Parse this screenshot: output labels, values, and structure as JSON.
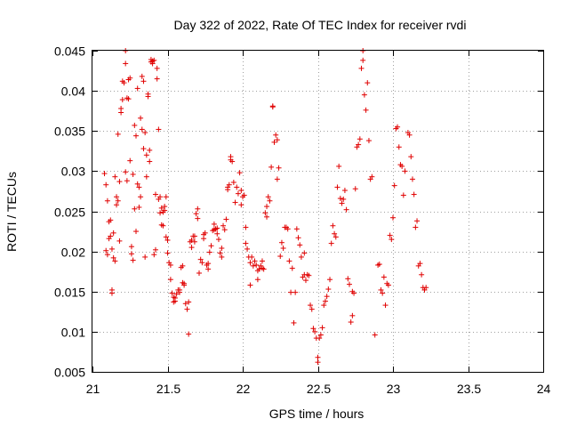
{
  "chart_data": {
    "type": "scatter",
    "title": "Day 322 of 2022, Rate Of TEC Index for receiver rvdi",
    "xlabel": "GPS time / hours",
    "ylabel": "ROTI / TECUs",
    "xlim": [
      21,
      24
    ],
    "ylim": [
      0.005,
      0.045
    ],
    "xticks": [
      21,
      21.5,
      22,
      22.5,
      23,
      23.5,
      24
    ],
    "xtick_labels": [
      "21",
      "21.5",
      "22",
      "22.5",
      "23",
      "23.5",
      "24"
    ],
    "yticks": [
      0.005,
      0.01,
      0.015,
      0.02,
      0.025,
      0.03,
      0.035,
      0.04,
      0.045
    ],
    "ytick_labels": [
      "0.005",
      "0.01",
      "0.015",
      "0.02",
      "0.025",
      "0.03",
      "0.035",
      "0.04",
      "0.045"
    ],
    "grid": true,
    "marker": "+",
    "color": "#e00000",
    "series": [
      {
        "name": "ROTI",
        "points": [
          [
            21.08,
            0.0297
          ],
          [
            21.09,
            0.0283
          ],
          [
            21.09,
            0.0201
          ],
          [
            21.1,
            0.0263
          ],
          [
            21.1,
            0.0196
          ],
          [
            21.11,
            0.0237
          ],
          [
            21.11,
            0.0216
          ],
          [
            21.12,
            0.0219
          ],
          [
            21.12,
            0.0239
          ],
          [
            21.13,
            0.0152
          ],
          [
            21.13,
            0.0148
          ],
          [
            21.13,
            0.0203
          ],
          [
            21.14,
            0.0192
          ],
          [
            21.14,
            0.0223
          ],
          [
            21.15,
            0.0293
          ],
          [
            21.15,
            0.0188
          ],
          [
            21.16,
            0.0268
          ],
          [
            21.16,
            0.0258
          ],
          [
            21.17,
            0.0263
          ],
          [
            21.17,
            0.0346
          ],
          [
            21.18,
            0.0287
          ],
          [
            21.18,
            0.0213
          ],
          [
            21.19,
            0.0373
          ],
          [
            21.19,
            0.0378
          ],
          [
            21.2,
            0.0389
          ],
          [
            21.2,
            0.0412
          ],
          [
            21.21,
            0.041
          ],
          [
            21.22,
            0.045
          ],
          [
            21.22,
            0.0434
          ],
          [
            21.22,
            0.0299
          ],
          [
            21.23,
            0.0391
          ],
          [
            21.23,
            0.0288
          ],
          [
            21.24,
            0.0414
          ],
          [
            21.24,
            0.039
          ],
          [
            21.25,
            0.0416
          ],
          [
            21.25,
            0.0313
          ],
          [
            21.26,
            0.0197
          ],
          [
            21.26,
            0.0206
          ],
          [
            21.27,
            0.0189
          ],
          [
            21.27,
            0.0296
          ],
          [
            21.28,
            0.0357
          ],
          [
            21.28,
            0.0253
          ],
          [
            21.29,
            0.0225
          ],
          [
            21.29,
            0.0344
          ],
          [
            21.3,
            0.0403
          ],
          [
            21.3,
            0.0284
          ],
          [
            21.31,
            0.0255
          ],
          [
            21.31,
            0.028
          ],
          [
            21.32,
            0.0366
          ],
          [
            21.32,
            0.0268
          ],
          [
            21.33,
            0.0418
          ],
          [
            21.33,
            0.0352
          ],
          [
            21.34,
            0.0412
          ],
          [
            21.34,
            0.0328
          ],
          [
            21.35,
            0.0193
          ],
          [
            21.35,
            0.0348
          ],
          [
            21.36,
            0.0293
          ],
          [
            21.36,
            0.032
          ],
          [
            21.37,
            0.0393
          ],
          [
            21.37,
            0.0396
          ],
          [
            21.38,
            0.0326
          ],
          [
            21.38,
            0.0312
          ],
          [
            21.39,
            0.0439
          ],
          [
            21.39,
            0.0436
          ],
          [
            21.4,
            0.0437
          ],
          [
            21.4,
            0.0434
          ],
          [
            21.41,
            0.0438
          ],
          [
            21.41,
            0.0196
          ],
          [
            21.42,
            0.0271
          ],
          [
            21.42,
            0.0202
          ],
          [
            21.43,
            0.0415
          ],
          [
            21.43,
            0.0428
          ],
          [
            21.44,
            0.0352
          ],
          [
            21.44,
            0.0265
          ],
          [
            21.45,
            0.0248
          ],
          [
            21.45,
            0.0268
          ],
          [
            21.46,
            0.0233
          ],
          [
            21.46,
            0.0254
          ],
          [
            21.47,
            0.0249
          ],
          [
            21.47,
            0.0232
          ],
          [
            21.48,
            0.0251
          ],
          [
            21.48,
            0.0256
          ],
          [
            21.49,
            0.0268
          ],
          [
            21.49,
            0.0218
          ],
          [
            21.5,
            0.0214
          ],
          [
            21.5,
            0.0198
          ],
          [
            21.51,
            0.0186
          ],
          [
            21.52,
            0.0183
          ],
          [
            21.52,
            0.0165
          ],
          [
            21.53,
            0.0148
          ],
          [
            21.54,
            0.0143
          ],
          [
            21.54,
            0.0137
          ],
          [
            21.55,
            0.0138
          ],
          [
            21.55,
            0.0142
          ],
          [
            21.56,
            0.0147
          ],
          [
            21.57,
            0.0152
          ],
          [
            21.58,
            0.0149
          ],
          [
            21.58,
            0.0152
          ],
          [
            21.59,
            0.018
          ],
          [
            21.6,
            0.0182
          ],
          [
            21.6,
            0.0161
          ],
          [
            21.61,
            0.016
          ],
          [
            21.61,
            0.0158
          ],
          [
            21.62,
            0.0135
          ],
          [
            21.63,
            0.0128
          ],
          [
            21.64,
            0.0097
          ],
          [
            21.64,
            0.0137
          ],
          [
            21.65,
            0.0212
          ],
          [
            21.66,
            0.0214
          ],
          [
            21.66,
            0.0205
          ],
          [
            21.67,
            0.0219
          ],
          [
            21.68,
            0.0212
          ],
          [
            21.68,
            0.0219
          ],
          [
            21.69,
            0.0247
          ],
          [
            21.7,
            0.0253
          ],
          [
            21.7,
            0.0241
          ],
          [
            21.71,
            0.0173
          ],
          [
            21.72,
            0.019
          ],
          [
            21.73,
            0.0186
          ],
          [
            21.74,
            0.0221
          ],
          [
            21.74,
            0.0216
          ],
          [
            21.75,
            0.0223
          ],
          [
            21.76,
            0.0183
          ],
          [
            21.77,
            0.0178
          ],
          [
            21.77,
            0.0185
          ],
          [
            21.78,
            0.0199
          ],
          [
            21.79,
            0.0207
          ],
          [
            21.8,
            0.0226
          ],
          [
            21.81,
            0.0234
          ],
          [
            21.81,
            0.0227
          ],
          [
            21.82,
            0.0228
          ],
          [
            21.83,
            0.0229
          ],
          [
            21.83,
            0.0222
          ],
          [
            21.84,
            0.0215
          ],
          [
            21.85,
            0.0198
          ],
          [
            21.86,
            0.0204
          ],
          [
            21.86,
            0.0193
          ],
          [
            21.87,
            0.0232
          ],
          [
            21.88,
            0.0227
          ],
          [
            21.89,
            0.024
          ],
          [
            21.9,
            0.028
          ],
          [
            21.9,
            0.0277
          ],
          [
            21.91,
            0.0283
          ],
          [
            21.92,
            0.0314
          ],
          [
            21.92,
            0.0318
          ],
          [
            21.93,
            0.0312
          ],
          [
            21.94,
            0.0286
          ],
          [
            21.95,
            0.0261
          ],
          [
            21.96,
            0.028
          ],
          [
            21.97,
            0.0272
          ],
          [
            21.98,
            0.0298
          ],
          [
            21.99,
            0.0276
          ],
          [
            21.99,
            0.0258
          ],
          [
            22.0,
            0.0268
          ],
          [
            22.01,
            0.027
          ],
          [
            22.02,
            0.023
          ],
          [
            22.02,
            0.021
          ],
          [
            22.03,
            0.0203
          ],
          [
            22.04,
            0.0193
          ],
          [
            22.05,
            0.0186
          ],
          [
            22.05,
            0.0158
          ],
          [
            22.06,
            0.0193
          ],
          [
            22.07,
            0.0182
          ],
          [
            22.08,
            0.0188
          ],
          [
            22.09,
            0.0183
          ],
          [
            22.1,
            0.0165
          ],
          [
            22.1,
            0.0176
          ],
          [
            22.11,
            0.0178
          ],
          [
            22.12,
            0.0182
          ],
          [
            22.13,
            0.0188
          ],
          [
            22.13,
            0.0179
          ],
          [
            22.14,
            0.0178
          ],
          [
            22.15,
            0.0248
          ],
          [
            22.16,
            0.0243
          ],
          [
            22.16,
            0.0256
          ],
          [
            22.17,
            0.0268
          ],
          [
            22.18,
            0.0263
          ],
          [
            22.19,
            0.0305
          ],
          [
            22.2,
            0.0381
          ],
          [
            22.2,
            0.038
          ],
          [
            22.21,
            0.0336
          ],
          [
            22.22,
            0.0345
          ],
          [
            22.23,
            0.0339
          ],
          [
            22.23,
            0.029
          ],
          [
            22.24,
            0.0304
          ],
          [
            22.25,
            0.0194
          ],
          [
            22.26,
            0.0211
          ],
          [
            22.27,
            0.0204
          ],
          [
            22.28,
            0.023
          ],
          [
            22.29,
            0.023
          ],
          [
            22.3,
            0.0228
          ],
          [
            22.31,
            0.0188
          ],
          [
            22.32,
            0.0149
          ],
          [
            22.33,
            0.0179
          ],
          [
            22.34,
            0.0111
          ],
          [
            22.35,
            0.0149
          ],
          [
            22.36,
            0.0228
          ],
          [
            22.37,
            0.0217
          ],
          [
            22.38,
            0.0208
          ],
          [
            22.39,
            0.0193
          ],
          [
            22.4,
            0.0168
          ],
          [
            22.41,
            0.0198
          ],
          [
            22.41,
            0.0171
          ],
          [
            22.42,
            0.0164
          ],
          [
            22.43,
            0.0171
          ],
          [
            22.44,
            0.017
          ],
          [
            22.45,
            0.0133
          ],
          [
            22.46,
            0.0128
          ],
          [
            22.47,
            0.0104
          ],
          [
            22.48,
            0.01
          ],
          [
            22.49,
            0.0092
          ],
          [
            22.5,
            0.0068
          ],
          [
            22.5,
            0.0062
          ],
          [
            22.51,
            0.0092
          ],
          [
            22.52,
            0.0096
          ],
          [
            22.53,
            0.0105
          ],
          [
            22.54,
            0.0133
          ],
          [
            22.55,
            0.0138
          ],
          [
            22.56,
            0.0144
          ],
          [
            22.57,
            0.0153
          ],
          [
            22.58,
            0.0165
          ],
          [
            22.59,
            0.021
          ],
          [
            22.6,
            0.0232
          ],
          [
            22.61,
            0.0222
          ],
          [
            22.62,
            0.0218
          ],
          [
            22.63,
            0.028
          ],
          [
            22.64,
            0.0306
          ],
          [
            22.65,
            0.0266
          ],
          [
            22.66,
            0.026
          ],
          [
            22.67,
            0.0265
          ],
          [
            22.68,
            0.0276
          ],
          [
            22.69,
            0.0252
          ],
          [
            22.7,
            0.0166
          ],
          [
            22.71,
            0.0159
          ],
          [
            22.72,
            0.0112
          ],
          [
            22.73,
            0.012
          ],
          [
            22.73,
            0.015
          ],
          [
            22.74,
            0.0148
          ],
          [
            22.75,
            0.0278
          ],
          [
            22.76,
            0.033
          ],
          [
            22.77,
            0.0333
          ],
          [
            22.78,
            0.034
          ],
          [
            22.79,
            0.0428
          ],
          [
            22.8,
            0.0438
          ],
          [
            22.8,
            0.045
          ],
          [
            22.81,
            0.0395
          ],
          [
            22.82,
            0.0376
          ],
          [
            22.83,
            0.041
          ],
          [
            22.84,
            0.0338
          ],
          [
            22.85,
            0.029
          ],
          [
            22.86,
            0.0293
          ],
          [
            22.88,
            0.0096
          ],
          [
            22.9,
            0.0183
          ],
          [
            22.91,
            0.0184
          ],
          [
            22.92,
            0.0152
          ],
          [
            22.93,
            0.0148
          ],
          [
            22.94,
            0.0168
          ],
          [
            22.95,
            0.0133
          ],
          [
            22.96,
            0.016
          ],
          [
            22.97,
            0.0158
          ],
          [
            22.98,
            0.022
          ],
          [
            22.99,
            0.0215
          ],
          [
            23.0,
            0.0242
          ],
          [
            23.01,
            0.0282
          ],
          [
            23.02,
            0.0353
          ],
          [
            23.03,
            0.0355
          ],
          [
            23.04,
            0.033
          ],
          [
            23.05,
            0.0308
          ],
          [
            23.06,
            0.0306
          ],
          [
            23.07,
            0.027
          ],
          [
            23.08,
            0.03
          ],
          [
            23.1,
            0.0348
          ],
          [
            23.11,
            0.0345
          ],
          [
            23.12,
            0.0318
          ],
          [
            23.13,
            0.029
          ],
          [
            23.14,
            0.0271
          ],
          [
            23.15,
            0.023
          ],
          [
            23.16,
            0.0238
          ],
          [
            23.17,
            0.0182
          ],
          [
            23.18,
            0.0185
          ],
          [
            23.19,
            0.0171
          ],
          [
            23.2,
            0.0155
          ],
          [
            23.21,
            0.0152
          ],
          [
            23.22,
            0.0155
          ]
        ]
      }
    ]
  }
}
